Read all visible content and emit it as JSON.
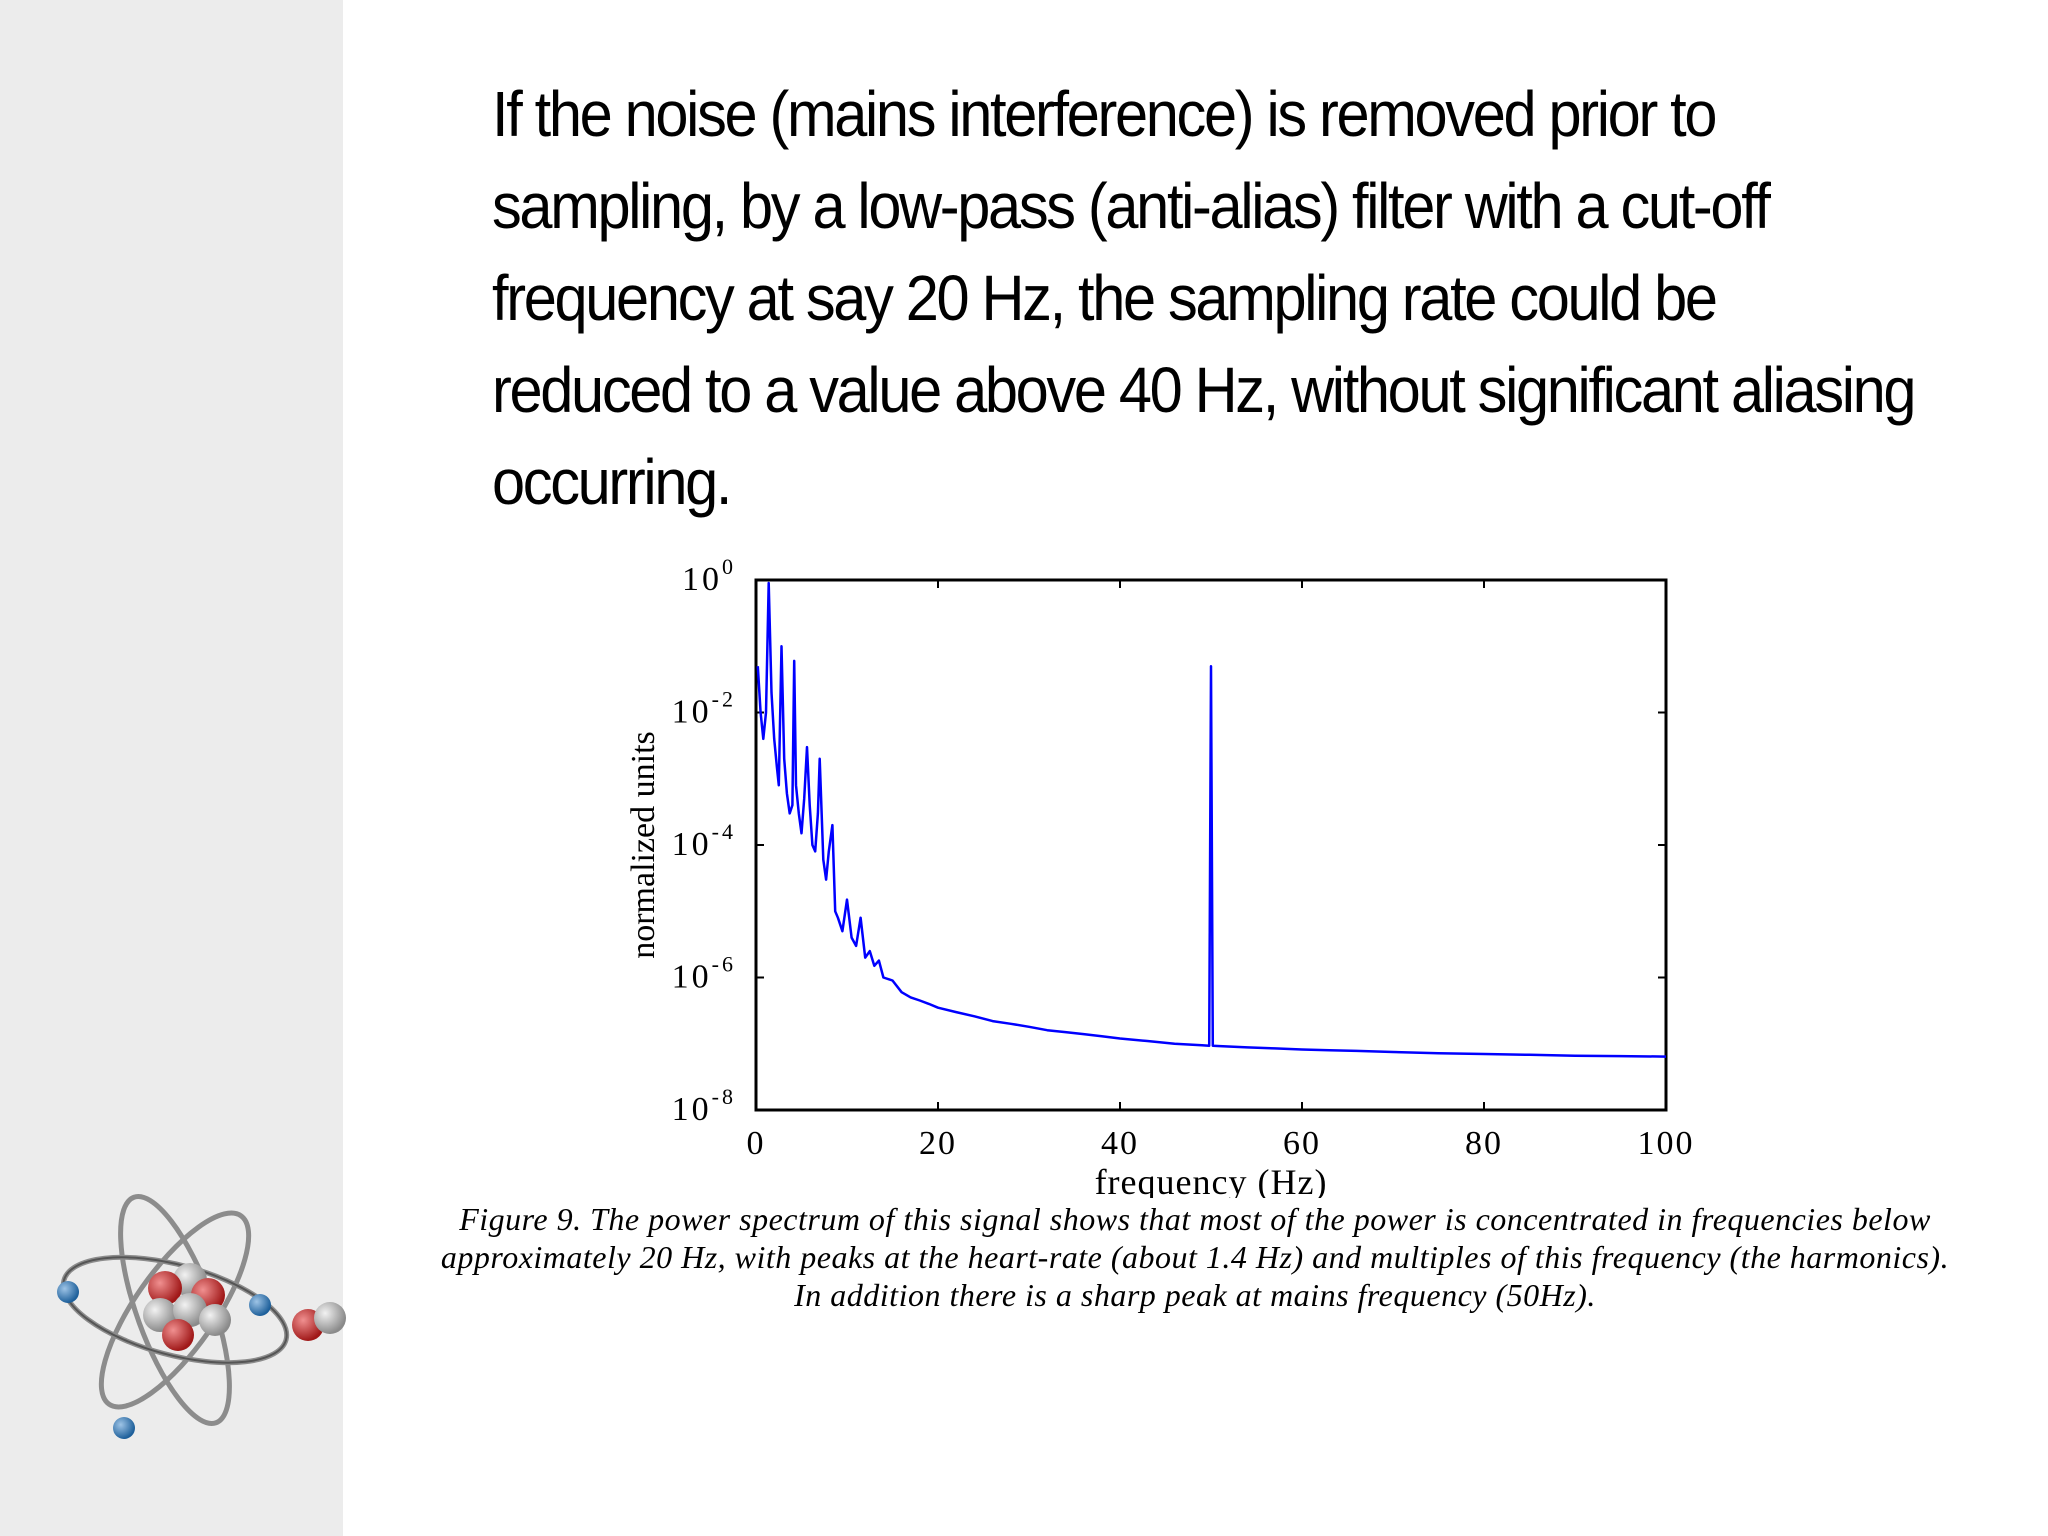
{
  "slide": {
    "body_text": "If the noise (mains interference) is removed prior to sampling, by a low-pass (anti-alias) filter with a cut-off frequency at say 20 Hz, the sampling rate could be reduced to a value above 40 Hz, without significant aliasing occurring.",
    "caption": "Figure 9. The power spectrum of this signal shows that most of the power is concentrated in frequencies below approximately 20 Hz, with peaks at the heart-rate (about 1.4 Hz) and multiples of this frequency (the harmonics). In addition there is a sharp peak at mains frequency (50Hz).",
    "logo_icon": "atom-icon"
  },
  "colors": {
    "sidebar": "#ececec",
    "series": "#0000ff",
    "text": "#000000"
  },
  "chart_data": {
    "type": "line",
    "title": "",
    "xlabel": "frequency (Hz)",
    "ylabel": "normalized units",
    "xlim": [
      0,
      100
    ],
    "ylim": [
      1e-08,
      1
    ],
    "yscale": "log",
    "grid": false,
    "x_ticks": [
      0,
      20,
      40,
      60,
      80,
      100
    ],
    "x_tick_labels": [
      "0",
      "20",
      "40",
      "60",
      "80",
      "100"
    ],
    "y_ticks": [
      1,
      0.01,
      0.0001,
      1e-06,
      1e-08
    ],
    "y_tick_labels": [
      {
        "base": "10",
        "exp": "0"
      },
      {
        "base": "10",
        "exp": "-2"
      },
      {
        "base": "10",
        "exp": "-4"
      },
      {
        "base": "10",
        "exp": "-6"
      },
      {
        "base": "10",
        "exp": "-8"
      }
    ],
    "series": [
      {
        "x": [
          0.2,
          0.5,
          0.8,
          1.1,
          1.4,
          1.7,
          2.0,
          2.3,
          2.5,
          2.8,
          3.1,
          3.4,
          3.7,
          4.0,
          4.2,
          4.4,
          4.7,
          5.0,
          5.3,
          5.6,
          5.9,
          6.2,
          6.5,
          6.8,
          7.0,
          7.4,
          7.7,
          8.0,
          8.4,
          8.7,
          9.0,
          9.5,
          10,
          10.5,
          11,
          11.5,
          12,
          12.5,
          13,
          13.5,
          14,
          15,
          16,
          17,
          18,
          19,
          20,
          22,
          24,
          26,
          28,
          30,
          32,
          34,
          36,
          38,
          40,
          43,
          46,
          49,
          49.8,
          50.0,
          50.2,
          51,
          54,
          57,
          60,
          63,
          66,
          70,
          75,
          80,
          85,
          90,
          95,
          100
        ],
        "y": [
          0.05,
          0.01,
          0.004,
          0.01,
          0.9,
          0.02,
          0.004,
          0.0015,
          0.0008,
          0.1,
          0.002,
          0.0006,
          0.0003,
          0.0004,
          0.06,
          0.0008,
          0.0003,
          0.00015,
          0.0005,
          0.003,
          0.0004,
          0.0001,
          8e-05,
          0.0003,
          0.002,
          6e-05,
          3e-05,
          8e-05,
          0.0002,
          1e-05,
          8e-06,
          5e-06,
          1.5e-05,
          4e-06,
          3e-06,
          8e-06,
          2e-06,
          2.5e-06,
          1.5e-06,
          1.8e-06,
          1e-06,
          9e-07,
          6e-07,
          5e-07,
          4.5e-07,
          4e-07,
          3.5e-07,
          3e-07,
          2.6e-07,
          2.2e-07,
          2e-07,
          1.8e-07,
          1.6e-07,
          1.5e-07,
          1.4e-07,
          1.3e-07,
          1.2e-07,
          1.1e-07,
          1e-07,
          9.5e-08,
          9.3e-08,
          0.05,
          9.3e-08,
          9.2e-08,
          8.8e-08,
          8.5e-08,
          8.2e-08,
          8e-08,
          7.8e-08,
          7.5e-08,
          7.2e-08,
          7e-08,
          6.8e-08,
          6.6e-08,
          6.5e-08,
          6.4e-08
        ]
      }
    ]
  }
}
